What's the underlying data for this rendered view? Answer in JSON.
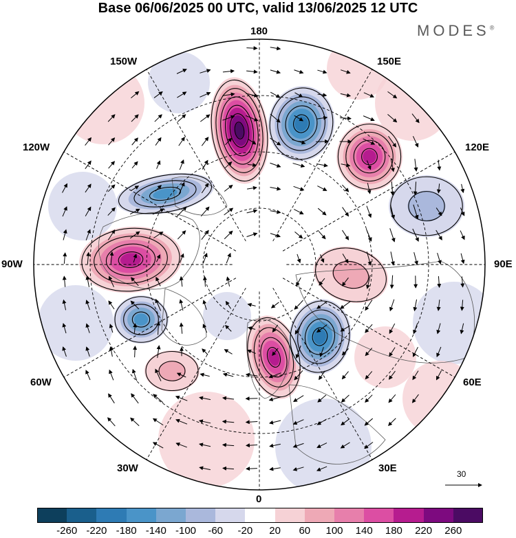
{
  "title": "Base 06/06/2025 00 UTC, valid 13/06/2025 12 UTC",
  "brand": "MODES",
  "brand_mark": "®",
  "longitude_labels": {
    "top": "180",
    "bottom": "0",
    "left": "90W",
    "right": "90E",
    "nw": "150W",
    "ne": "150E",
    "wnw": "120W",
    "ene": "120E",
    "wsw": "60W",
    "ese": "60E",
    "sw": "30W",
    "se": "30E"
  },
  "vector_reference": "30",
  "colorbar": {
    "ticks": [
      "-260",
      "-220",
      "-180",
      "-140",
      "-100",
      "-60",
      "-20",
      "20",
      "60",
      "100",
      "140",
      "180",
      "220",
      "260"
    ],
    "colors": [
      "#0d3f5c",
      "#1a5f8c",
      "#2e7bb4",
      "#4a94c8",
      "#7ba7d0",
      "#aab8dc",
      "#d6d8ec",
      "#ffffff",
      "#f6d2d6",
      "#eea9b6",
      "#e77fab",
      "#dc4ea3",
      "#b61c8f",
      "#7d0a7f",
      "#4b0b63"
    ]
  },
  "anomaly_centers": [
    {
      "sign": "positive",
      "level": "very-strong",
      "region": "north-pacific-north"
    },
    {
      "sign": "negative",
      "level": "strong",
      "region": "east-siberian-sea"
    },
    {
      "sign": "positive",
      "level": "strong",
      "region": "east-siberia"
    },
    {
      "sign": "negative",
      "level": "moderate",
      "region": "alaska-yukon"
    },
    {
      "sign": "positive",
      "level": "strong",
      "region": "canada-hudson"
    },
    {
      "sign": "negative",
      "level": "moderate",
      "region": "labrador"
    },
    {
      "sign": "positive",
      "level": "strong",
      "region": "greenland-sea"
    },
    {
      "sign": "negative",
      "level": "strong",
      "region": "barents-sea"
    },
    {
      "sign": "positive",
      "level": "weak",
      "region": "west-siberia"
    },
    {
      "sign": "negative",
      "level": "weak",
      "region": "central-siberia"
    },
    {
      "sign": "positive",
      "level": "weak",
      "region": "north-atlantic"
    }
  ]
}
